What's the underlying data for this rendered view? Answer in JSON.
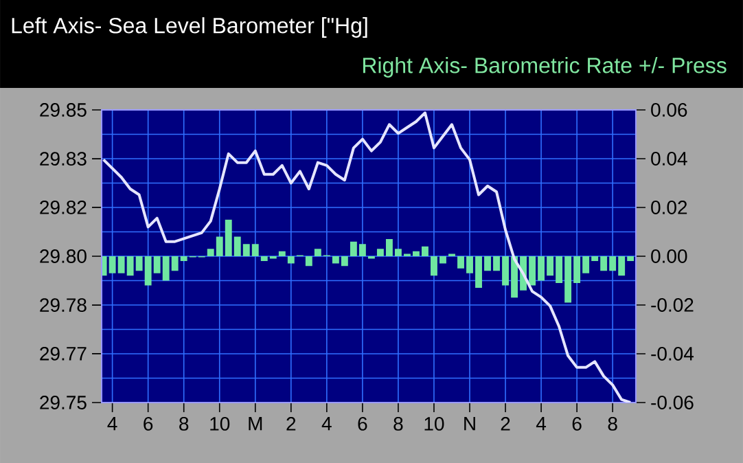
{
  "chart_data": {
    "type": "bar",
    "title": "Left Axis- Sea Level Barometer  [\"Hg]",
    "subtitle": "Right Axis- Barometric Rate +/- Press",
    "categories": [
      null,
      "4",
      null,
      null,
      null,
      "6",
      null,
      null,
      null,
      "8",
      null,
      null,
      null,
      "10",
      null,
      null,
      null,
      "M",
      null,
      null,
      null,
      "2",
      null,
      null,
      null,
      "4",
      null,
      null,
      null,
      "6",
      null,
      null,
      null,
      "8",
      null,
      null,
      null,
      "10",
      null,
      null,
      null,
      "N",
      null,
      null,
      null,
      "2",
      null,
      null,
      null,
      "4",
      null,
      null,
      null,
      "6",
      null,
      null,
      null,
      "8",
      null,
      null
    ],
    "ylim": [
      29.75,
      29.85
    ],
    "yticks": [
      29.75,
      {
        "value": 29.7667,
        "label": "29.77"
      },
      {
        "value": 29.7833,
        "label": "29.78"
      },
      {
        "value": 29.8,
        "label": "29.80"
      },
      {
        "value": 29.8167,
        "label": "29.82"
      },
      {
        "value": 29.8333,
        "label": "29.83"
      },
      29.85
    ],
    "y2lim": [
      -0.06,
      0.06
    ],
    "y2ticks": [
      -0.06,
      -0.04,
      -0.02,
      {
        "value": 0,
        "label": "0.00"
      },
      0.02,
      0.04,
      0.06
    ],
    "grid": true,
    "series": [
      {
        "axis": "y2",
        "color": "#70e6a0",
        "values": [
          -0.008,
          -0.007,
          -0.007,
          -0.008,
          -0.006,
          -0.012,
          -0.007,
          -0.01,
          -0.006,
          -0.002,
          -0.0004,
          -0.0004,
          0.003,
          0.008,
          0.015,
          0.008,
          0.005,
          0.005,
          -0.002,
          -0.001,
          0.002,
          -0.003,
          0.0004,
          -0.004,
          0.003,
          0.0004,
          -0.003,
          -0.004,
          0.006,
          0.005,
          -0.001,
          0.003,
          0.007,
          0.003,
          0.001,
          0.002,
          0.004,
          -0.008,
          -0.003,
          0.001,
          -0.005,
          -0.007,
          -0.013,
          -0.006,
          -0.006,
          -0.012,
          -0.017,
          -0.014,
          -0.012,
          -0.01,
          -0.008,
          -0.011,
          -0.019,
          -0.011,
          -0.007,
          -0.002,
          -0.006,
          -0.006,
          -0.008,
          -0.002
        ]
      },
      {
        "type": "line",
        "axis": "y",
        "color": "#e6e6ff",
        "values": [
          29.833,
          29.83,
          29.827,
          29.823,
          29.821,
          29.81,
          29.813,
          29.805,
          29.805,
          29.806,
          29.807,
          29.808,
          29.812,
          29.823,
          29.835,
          29.832,
          29.832,
          29.836,
          29.828,
          29.828,
          29.831,
          29.825,
          29.829,
          29.823,
          29.832,
          29.831,
          29.828,
          29.826,
          29.837,
          29.84,
          29.836,
          29.839,
          29.845,
          29.842,
          29.844,
          29.846,
          29.849,
          29.837,
          29.841,
          29.845,
          29.837,
          29.833,
          29.821,
          29.824,
          29.822,
          29.809,
          29.799,
          29.794,
          29.788,
          29.786,
          29.783,
          29.776,
          29.766,
          29.762,
          29.762,
          29.764,
          29.759,
          29.756,
          29.751,
          29.75
        ]
      }
    ]
  }
}
